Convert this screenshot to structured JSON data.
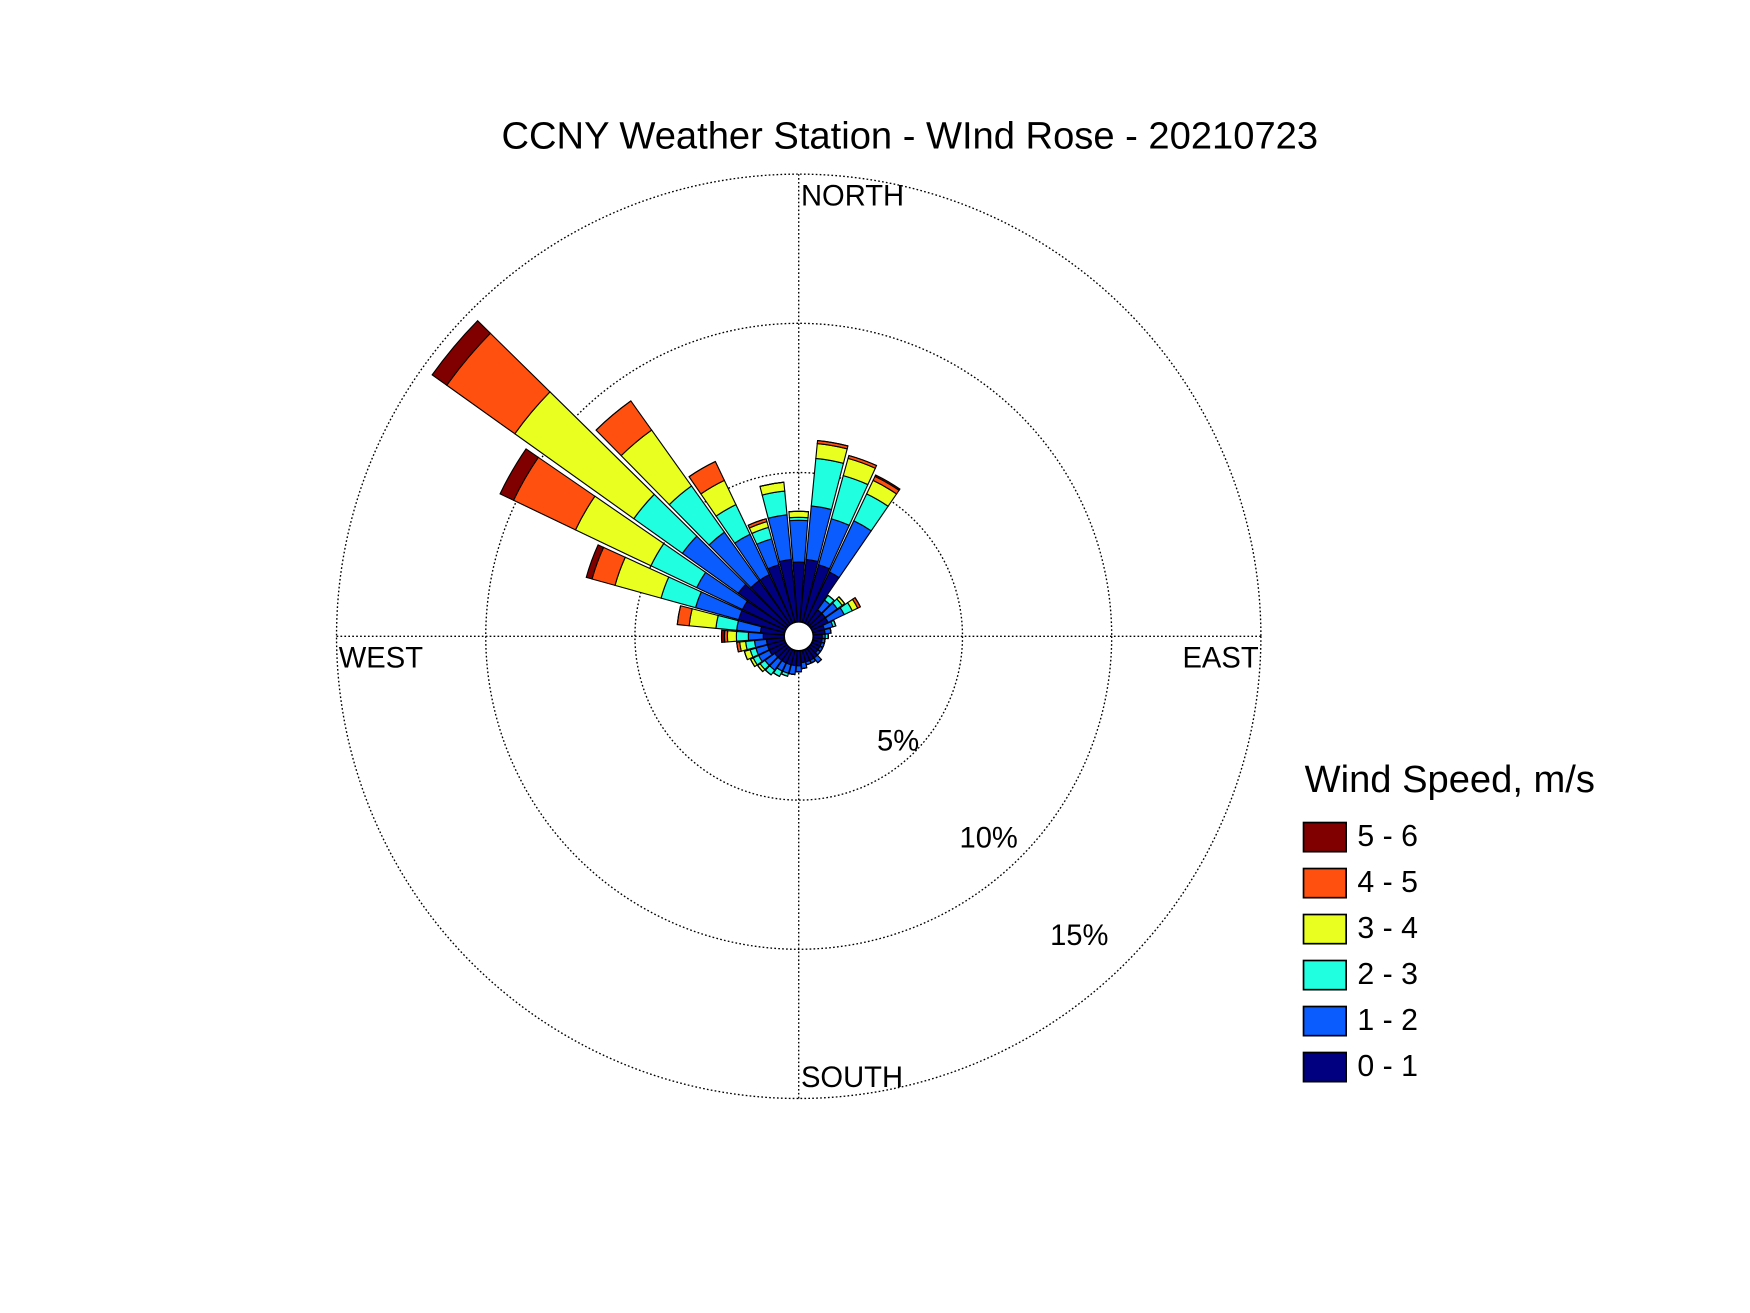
{
  "chart_data": {
    "type": "windrose",
    "title": "CCNY Weather Station - WInd Rose - 20210723",
    "direction_labels": [
      "NORTH",
      "EAST",
      "SOUTH",
      "WEST"
    ],
    "legend_title": "Wind Speed, m/s",
    "x": [
      0,
      10,
      20,
      30,
      40,
      50,
      60,
      70,
      80,
      90,
      100,
      110,
      120,
      130,
      140,
      150,
      160,
      170,
      180,
      190,
      200,
      210,
      220,
      230,
      240,
      250,
      260,
      270,
      280,
      290,
      300,
      310,
      320,
      330,
      340,
      350
    ],
    "rlim": [
      0,
      15
    ],
    "rticks": [
      {
        "value": 5,
        "label": "5%"
      },
      {
        "value": 10,
        "label": "10%"
      },
      {
        "value": 15,
        "label": "15%"
      }
    ],
    "grid": true,
    "series": [
      {
        "name": "0 - 1",
        "color": "#000080",
        "values": [
          2.0,
          2.1,
          2.0,
          1.9,
          0.6,
          0.6,
          0.6,
          0.4,
          0.4,
          0.3,
          0.3,
          0.3,
          0.3,
          0.3,
          0.4,
          0.4,
          0.4,
          0.4,
          0.5,
          0.5,
          0.5,
          0.5,
          0.5,
          0.5,
          0.6,
          0.6,
          0.6,
          0.7,
          0.8,
          1.6,
          1.6,
          2.0,
          1.8,
          1.8,
          2.0,
          2.1
        ]
      },
      {
        "name": "1 - 2",
        "color": "#0a5cff",
        "values": [
          1.4,
          1.8,
          1.6,
          1.9,
          0.4,
          0.5,
          0.6,
          0.3,
          0.2,
          0.1,
          0.1,
          0.1,
          0.1,
          0.1,
          0.2,
          0.1,
          0.1,
          0.2,
          0.2,
          0.3,
          0.3,
          0.3,
          0.4,
          0.4,
          0.4,
          0.4,
          0.4,
          0.5,
          0.8,
          1.5,
          1.7,
          2.3,
          2.0,
          1.5,
          0.9,
          1.5
        ]
      },
      {
        "name": "2 - 3",
        "color": "#20ffe0",
        "values": [
          0.1,
          1.6,
          1.5,
          1.0,
          0.2,
          0.2,
          0.3,
          0.1,
          0,
          0.1,
          0,
          0,
          0,
          0,
          0,
          0,
          0,
          0,
          0,
          0,
          0.1,
          0.2,
          0.2,
          0.2,
          0.2,
          0.2,
          0.3,
          0.4,
          0.7,
          1.2,
          1.7,
          2.0,
          1.9,
          1.1,
          0.4,
          0.8
        ]
      },
      {
        "name": "3 - 4",
        "color": "#e8ff20",
        "values": [
          0.2,
          0.5,
          0.6,
          0.5,
          0,
          0.1,
          0.2,
          0,
          0,
          0,
          0,
          0,
          0,
          0,
          0,
          0,
          0,
          0,
          0,
          0,
          0,
          0,
          0,
          0.1,
          0.1,
          0.2,
          0.2,
          0.3,
          0.9,
          1.6,
          2.8,
          4.9,
          2.3,
          0.9,
          0.2,
          0.3
        ]
      },
      {
        "name": "4 - 5",
        "color": "#ff5010",
        "values": [
          0,
          0.1,
          0.1,
          0.15,
          0,
          0,
          0.1,
          0,
          0,
          0,
          0,
          0,
          0,
          0,
          0,
          0,
          0,
          0,
          0,
          0,
          0,
          0,
          0,
          0,
          0,
          0,
          0.1,
          0.1,
          0.4,
          0.8,
          2.3,
          2.8,
          1.2,
          0.7,
          0.1,
          0
        ]
      },
      {
        "name": "5 - 6",
        "color": "#800000",
        "values": [
          0,
          0,
          0,
          0.05,
          0,
          0,
          0,
          0,
          0,
          0,
          0,
          0,
          0,
          0,
          0,
          0,
          0,
          0,
          0,
          0,
          0,
          0,
          0,
          0,
          0,
          0,
          0,
          0.1,
          0,
          0.2,
          0.5,
          0.6,
          0,
          0,
          0,
          0
        ]
      }
    ]
  }
}
